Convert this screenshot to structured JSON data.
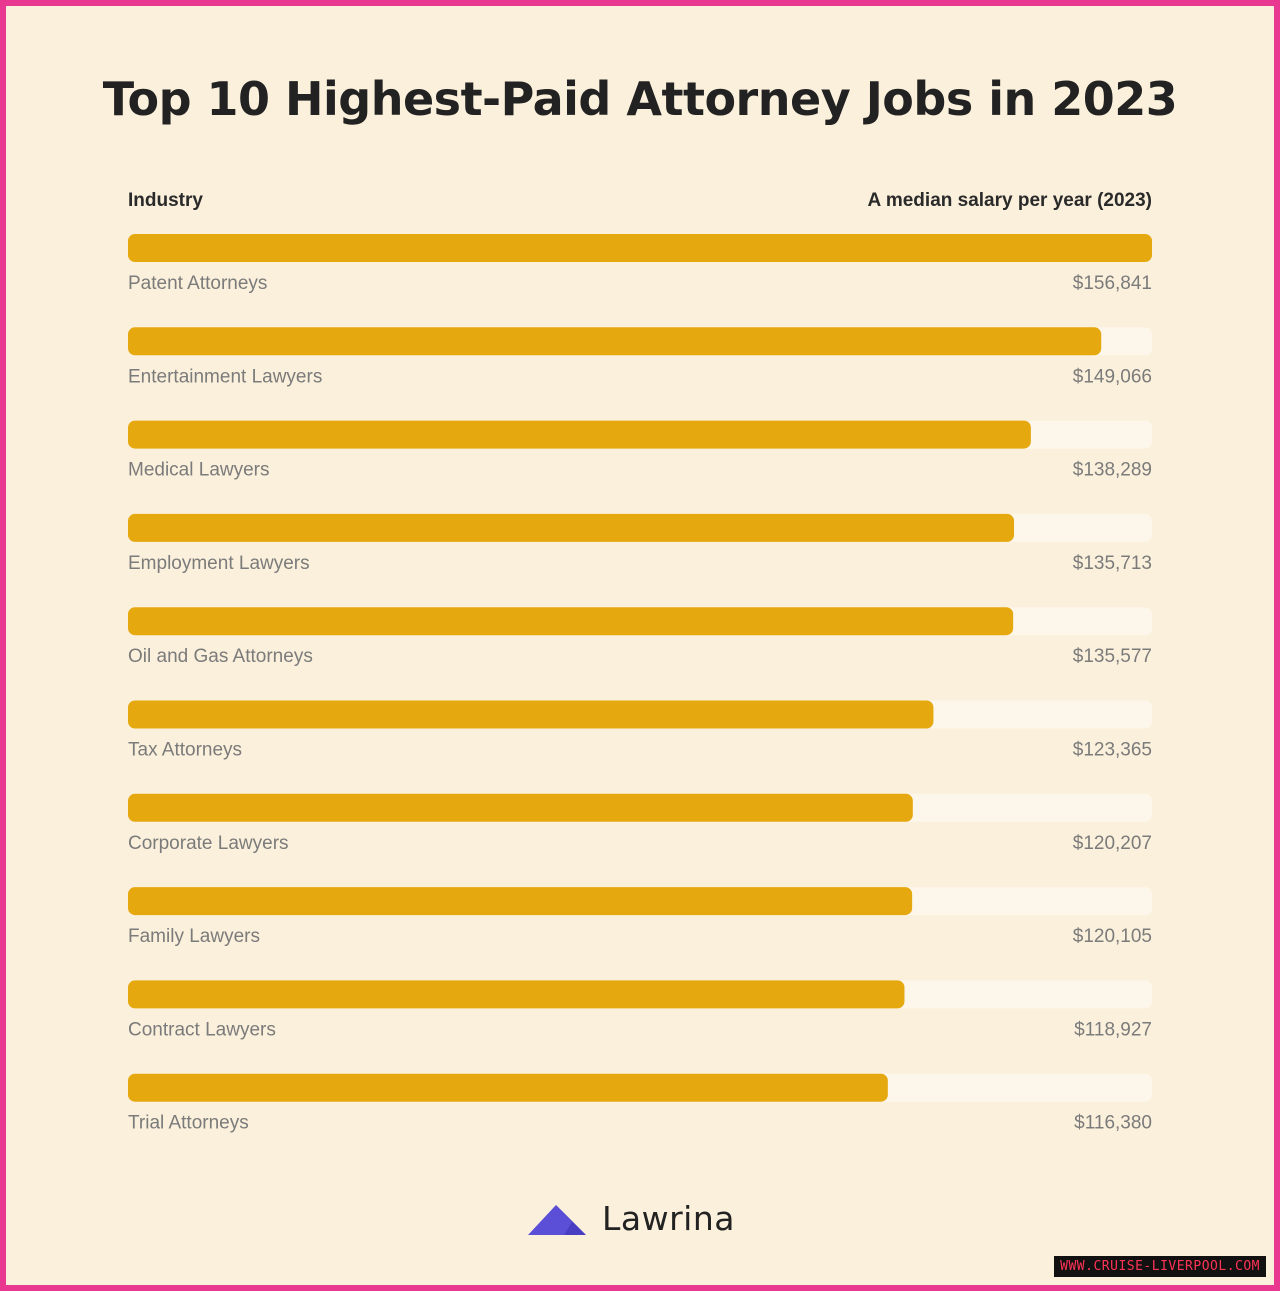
{
  "chart_data": {
    "type": "bar",
    "orientation": "horizontal",
    "title": "Top 10 Highest-Paid Attorney Jobs in 2023",
    "category_header": "Industry",
    "value_header": "A median salary per year (2023)",
    "categories": [
      "Patent Attorneys",
      "Entertainment Lawyers",
      "Medical Lawyers",
      "Employment Lawyers",
      "Oil and Gas Attorneys",
      "Tax Attorneys",
      "Corporate Lawyers",
      "Family Lawyers",
      "Contract Lawyers",
      "Trial Attorneys"
    ],
    "values": [
      156841,
      149066,
      138289,
      135713,
      135577,
      123365,
      120207,
      120105,
      118927,
      116380
    ],
    "value_labels": [
      "$156,841",
      "$149,066",
      "$138,289",
      "$135,713",
      "$135,577",
      "$123,365",
      "$120,207",
      "$120,105",
      "$118,927",
      "$116,380"
    ],
    "xlim": [
      0,
      156841
    ],
    "grid": false,
    "legend": "none"
  },
  "colors": {
    "bar": "#e6a80f",
    "track": "#fdf6ea",
    "background": "#fbf0db",
    "border": "#e8388f",
    "logo_mark": "#5b4fd8"
  },
  "brand": {
    "name": "Lawrina",
    "icon": "lawrina-logo-icon"
  },
  "watermark": "WWW.CRUISE-LIVERPOOL.COM"
}
